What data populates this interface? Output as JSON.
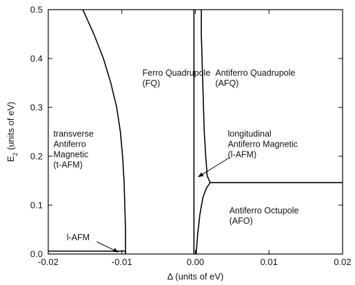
{
  "chart_data": {
    "type": "line",
    "title": "",
    "xlabel": "Δ (units of eV)",
    "ylabel": "E",
    "ylabel_subscript": "2",
    "ylabel_suffix": " (units of eV)",
    "xlim": [
      -0.02,
      0.02
    ],
    "ylim": [
      0,
      0.5
    ],
    "grid": false,
    "legend": "none",
    "x_ticks": [
      -0.02,
      -0.01,
      0,
      0.01,
      0.02
    ],
    "x_tick_labels": [
      "-0.02",
      "-0.01",
      "0.00",
      "0.01",
      "0.02"
    ],
    "y_ticks": [
      0,
      0.1,
      0.2,
      0.3,
      0.4,
      0.5
    ],
    "y_tick_labels": [
      "0.0",
      "0.1",
      "0.2",
      "0.3",
      "0.4",
      "0.5"
    ],
    "series": [
      {
        "id": "fq-tafm-boundary",
        "values": [
          [
            -0.0153,
            0.5
          ],
          [
            -0.0138,
            0.45
          ],
          [
            -0.0125,
            0.4
          ],
          [
            -0.0115,
            0.35
          ],
          [
            -0.0107,
            0.3
          ],
          [
            -0.0102,
            0.25
          ],
          [
            -0.0099,
            0.2
          ],
          [
            -0.0097,
            0.15
          ],
          [
            -0.0096,
            0.1
          ],
          [
            -0.0095,
            0.05
          ],
          [
            -0.0095,
            0.0
          ]
        ]
      },
      {
        "id": "lafm-bottom-boundary",
        "values": [
          [
            -0.02,
            0.006
          ],
          [
            -0.0095,
            0.006
          ]
        ]
      },
      {
        "id": "lafm-left-boundary",
        "values": [
          [
            -0.0002,
            0.5
          ],
          [
            -0.0002,
            0.0
          ]
        ]
      },
      {
        "id": "lafm-right-boundary",
        "values": [
          [
            0.0008,
            0.5
          ],
          [
            0.0008,
            0.45
          ],
          [
            0.0009,
            0.4
          ],
          [
            0.001,
            0.35
          ],
          [
            0.0011,
            0.3
          ],
          [
            0.0012,
            0.25
          ],
          [
            0.0014,
            0.2
          ],
          [
            0.0016,
            0.16
          ],
          [
            0.002,
            0.146
          ]
        ]
      },
      {
        "id": "afo-upper-boundary",
        "values": [
          [
            0.002,
            0.146
          ],
          [
            0.02,
            0.146
          ]
        ]
      },
      {
        "id": "afo-left-boundary",
        "values": [
          [
            0.0001,
            0.0
          ],
          [
            0.0003,
            0.04
          ],
          [
            0.0006,
            0.08
          ],
          [
            0.001,
            0.115
          ],
          [
            0.0015,
            0.135
          ],
          [
            0.002,
            0.146
          ]
        ]
      }
    ],
    "annotations": [
      {
        "id": "fq",
        "lines": [
          "Ferro Quadrupole",
          "(FQ)"
        ],
        "x": -0.0072,
        "y": 0.365
      },
      {
        "id": "afq",
        "lines": [
          "Antiferro Quadrupole",
          "(AFQ)"
        ],
        "x": 0.0027,
        "y": 0.365
      },
      {
        "id": "tafm",
        "lines": [
          "transverse",
          "Antiferro",
          "Magnetic",
          "(t-AFM)"
        ],
        "x": -0.0193,
        "y": 0.24
      },
      {
        "id": "lafm",
        "lines": [
          "longitudinal",
          "Antiferro Magnetic",
          "(l-AFM)"
        ],
        "x": 0.0044,
        "y": 0.24
      },
      {
        "id": "afo",
        "lines": [
          "Antiferro Octupole",
          "(AFO)"
        ],
        "x": 0.0046,
        "y": 0.083
      },
      {
        "id": "lafm-small",
        "lines": [
          "l-AFM"
        ],
        "x": -0.0175,
        "y": 0.028
      }
    ],
    "arrows": [
      {
        "id": "arrow-lafm",
        "from": [
          0.0046,
          0.197
        ],
        "to": [
          0.0004,
          0.158
        ]
      },
      {
        "id": "arrow-lafm-small",
        "from": [
          -0.0134,
          0.025
        ],
        "to": [
          -0.0105,
          0.004
        ]
      }
    ]
  }
}
